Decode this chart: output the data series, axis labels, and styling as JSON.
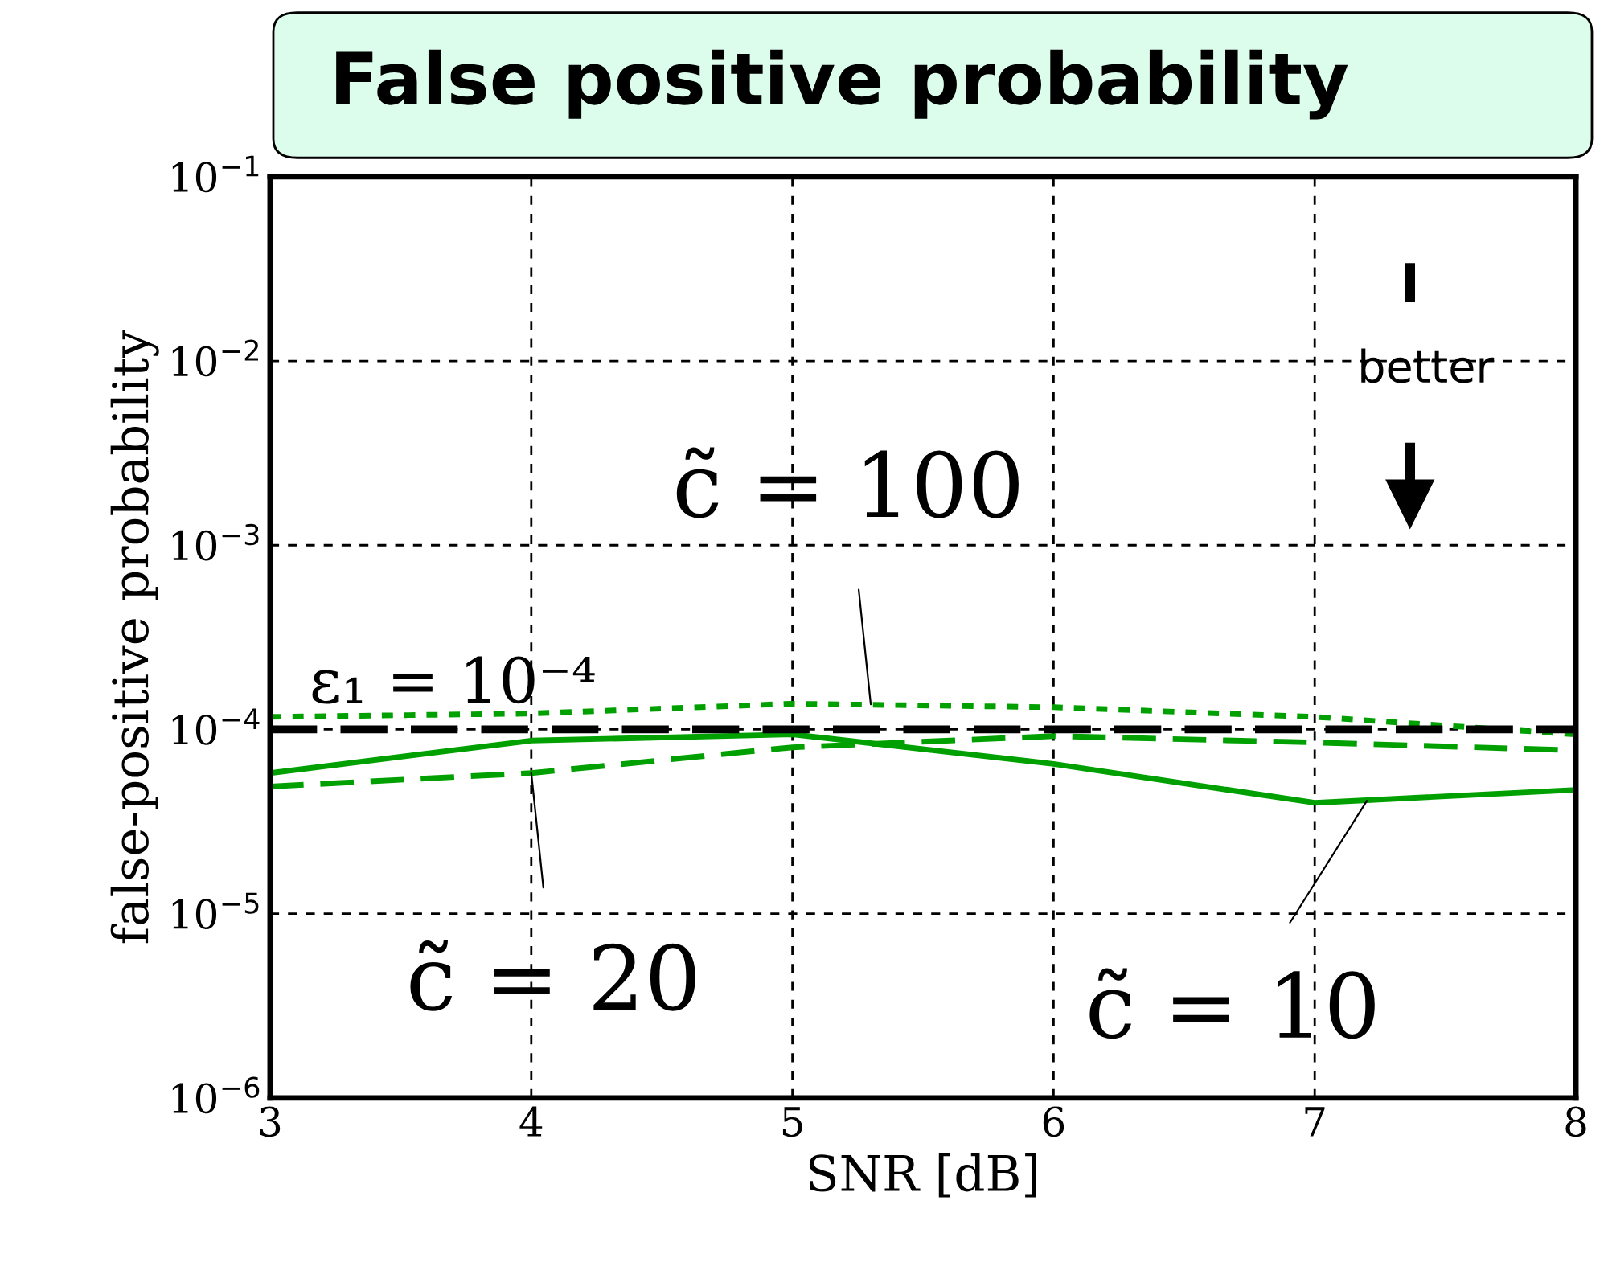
{
  "chart_data": {
    "type": "line",
    "title": "False positive probability",
    "xlabel": "SNR [dB]",
    "ylabel": "false-positive probability",
    "x": [
      3,
      4,
      5,
      6,
      7,
      8
    ],
    "log": "y",
    "xlim": [
      3,
      8
    ],
    "xticks": [
      3,
      4,
      5,
      6,
      7,
      8
    ],
    "ylim": [
      1e-06,
      0.1
    ],
    "yticks": [
      {
        "value": 1e-06,
        "label": "10$^{−6}$"
      },
      {
        "value": 1e-05,
        "label": "10$^{−5}$"
      },
      {
        "value": 0.0001,
        "label": "10$^{−4}$"
      },
      {
        "value": 0.001,
        "label": "10$^{−3}$"
      },
      {
        "value": 0.01,
        "label": "10$^{−2}$"
      },
      {
        "value": 0.1,
        "label": "10$^{−1}$"
      }
    ],
    "grid": true,
    "series": [
      {
        "color": "#00a000",
        "line_style": "solid",
        "values": [
          5.8e-05,
          8.7e-05,
          9.4e-05,
          6.5e-05,
          4e-05,
          4.7e-05
        ]
      },
      {
        "color": "#00a000",
        "line_style": "dashed",
        "values": [
          4.9e-05,
          5.8e-05,
          8e-05,
          9.2e-05,
          8.5e-05,
          7.7e-05
        ]
      },
      {
        "color": "#00a000",
        "line_style": "dotted",
        "values": [
          0.000117,
          0.000122,
          0.000138,
          0.000132,
          0.000117,
          9.4e-05
        ]
      }
    ],
    "ref_lines": [
      {
        "axis": "y",
        "value": 0.0001,
        "color": "#000000",
        "line_style": "dashed"
      }
    ],
    "annotations": [
      {
        "text": "ε₁ = 10⁻⁴",
        "y": 0.0001
      },
      {
        "text": "c̃ = 100",
        "x": 5.3,
        "y": 0.000137
      },
      {
        "text": "c̃ = 20",
        "x": 4.0,
        "y": 5.8e-05
      },
      {
        "text": "c̃ = 10",
        "x": 7.2,
        "y": 4.1e-05
      },
      "better"
    ]
  }
}
